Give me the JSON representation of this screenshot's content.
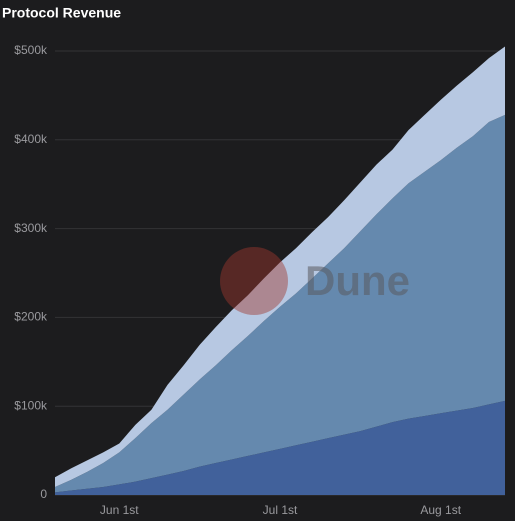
{
  "chart_data": {
    "type": "stacked-area",
    "title": "Protocol Revenue",
    "watermark": "Dune",
    "categories": [
      null,
      null,
      null,
      null,
      "Jun 1st",
      null,
      null,
      null,
      null,
      null,
      null,
      null,
      null,
      null,
      "Jul 1st",
      null,
      null,
      null,
      null,
      null,
      null,
      null,
      null,
      null,
      "Aug 1st",
      null,
      null,
      null,
      null
    ],
    "series": [
      {
        "color": "#41619b",
        "values": [
          3000,
          5000,
          7000,
          9000,
          12000,
          15000,
          19000,
          23000,
          27000,
          32000,
          36000,
          40000,
          44000,
          48000,
          52000,
          56000,
          60000,
          64000,
          68000,
          72000,
          77000,
          82000,
          86000,
          89000,
          92000,
          95000,
          98000,
          102000,
          106000
        ]
      },
      {
        "color": "#6589ae",
        "values": [
          6000,
          12000,
          19000,
          27000,
          36000,
          49000,
          62000,
          73000,
          86000,
          98000,
          110000,
          123000,
          135000,
          148000,
          160000,
          171000,
          184000,
          197000,
          210000,
          225000,
          239000,
          252000,
          265000,
          275000,
          285000,
          296000,
          306000,
          318000,
          322000
        ]
      },
      {
        "color": "#b7c8e2",
        "values": [
          11000,
          13000,
          13000,
          12000,
          10000,
          15000,
          15000,
          28000,
          33000,
          39000,
          43000,
          45000,
          46000,
          48000,
          50000,
          51000,
          52000,
          52000,
          54000,
          55000,
          56000,
          55000,
          60000,
          64000,
          68000,
          70000,
          72000,
          72000,
          77000
        ]
      }
    ],
    "ylim": [
      0,
      500000
    ],
    "yticks": [
      0,
      {
        "value": 100000,
        "label": "$100k"
      },
      {
        "value": 200000,
        "label": "$200k"
      },
      {
        "value": 300000,
        "label": "$300k"
      },
      {
        "value": 400000,
        "label": "$400k"
      },
      {
        "value": 500000,
        "label": "$500k"
      }
    ],
    "grid": true
  }
}
